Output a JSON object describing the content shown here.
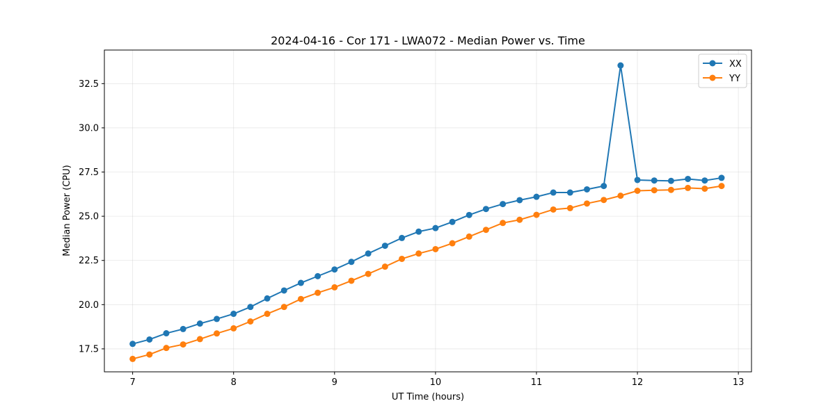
{
  "chart_data": {
    "type": "line",
    "title": "2024-04-16 - Cor 171 - LWA072 - Median Power vs. Time",
    "xlabel": "UT Time (hours)",
    "ylabel": "Median Power (CPU)",
    "xlim": [
      6.72,
      13.13
    ],
    "ylim": [
      16.2,
      34.4
    ],
    "xticks": [
      7,
      8,
      9,
      10,
      11,
      12,
      13
    ],
    "xtick_labels": [
      "7",
      "8",
      "9",
      "10",
      "11",
      "12",
      "13"
    ],
    "yticks": [
      17.5,
      20.0,
      22.5,
      25.0,
      27.5,
      30.0,
      32.5
    ],
    "ytick_labels": [
      "17.5",
      "20.0",
      "22.5",
      "25.0",
      "27.5",
      "30.0",
      "32.5"
    ],
    "grid": true,
    "legend_position": "top-right",
    "x": [
      7.0,
      7.1667,
      7.3333,
      7.5,
      7.6667,
      7.8333,
      8.0,
      8.1667,
      8.3333,
      8.5,
      8.6667,
      8.8333,
      9.0,
      9.1667,
      9.3333,
      9.5,
      9.6667,
      9.8333,
      10.0,
      10.1667,
      10.3333,
      10.5,
      10.6667,
      10.8333,
      11.0,
      11.1667,
      11.3333,
      11.5,
      11.6667,
      11.8333,
      12.0,
      12.1667,
      12.3333,
      12.5,
      12.6667,
      12.8333
    ],
    "series": [
      {
        "name": "XX",
        "color": "#1f77b4",
        "values": [
          17.78,
          18.03,
          18.38,
          18.62,
          18.93,
          19.19,
          19.48,
          19.87,
          20.35,
          20.8,
          21.23,
          21.61,
          21.99,
          22.42,
          22.89,
          23.33,
          23.77,
          24.13,
          24.33,
          24.68,
          25.07,
          25.41,
          25.69,
          25.91,
          26.1,
          26.34,
          26.34,
          26.52,
          26.71,
          33.53,
          27.05,
          27.02,
          27.0,
          27.11,
          27.02,
          27.17
        ]
      },
      {
        "name": "YY",
        "color": "#ff7f0e",
        "values": [
          16.93,
          17.18,
          17.55,
          17.75,
          18.05,
          18.37,
          18.66,
          19.05,
          19.48,
          19.87,
          20.32,
          20.67,
          20.98,
          21.35,
          21.74,
          22.15,
          22.59,
          22.89,
          23.14,
          23.47,
          23.85,
          24.23,
          24.62,
          24.8,
          25.08,
          25.38,
          25.46,
          25.72,
          25.92,
          26.16,
          26.44,
          26.47,
          26.49,
          26.6,
          26.56,
          26.71
        ]
      }
    ]
  }
}
